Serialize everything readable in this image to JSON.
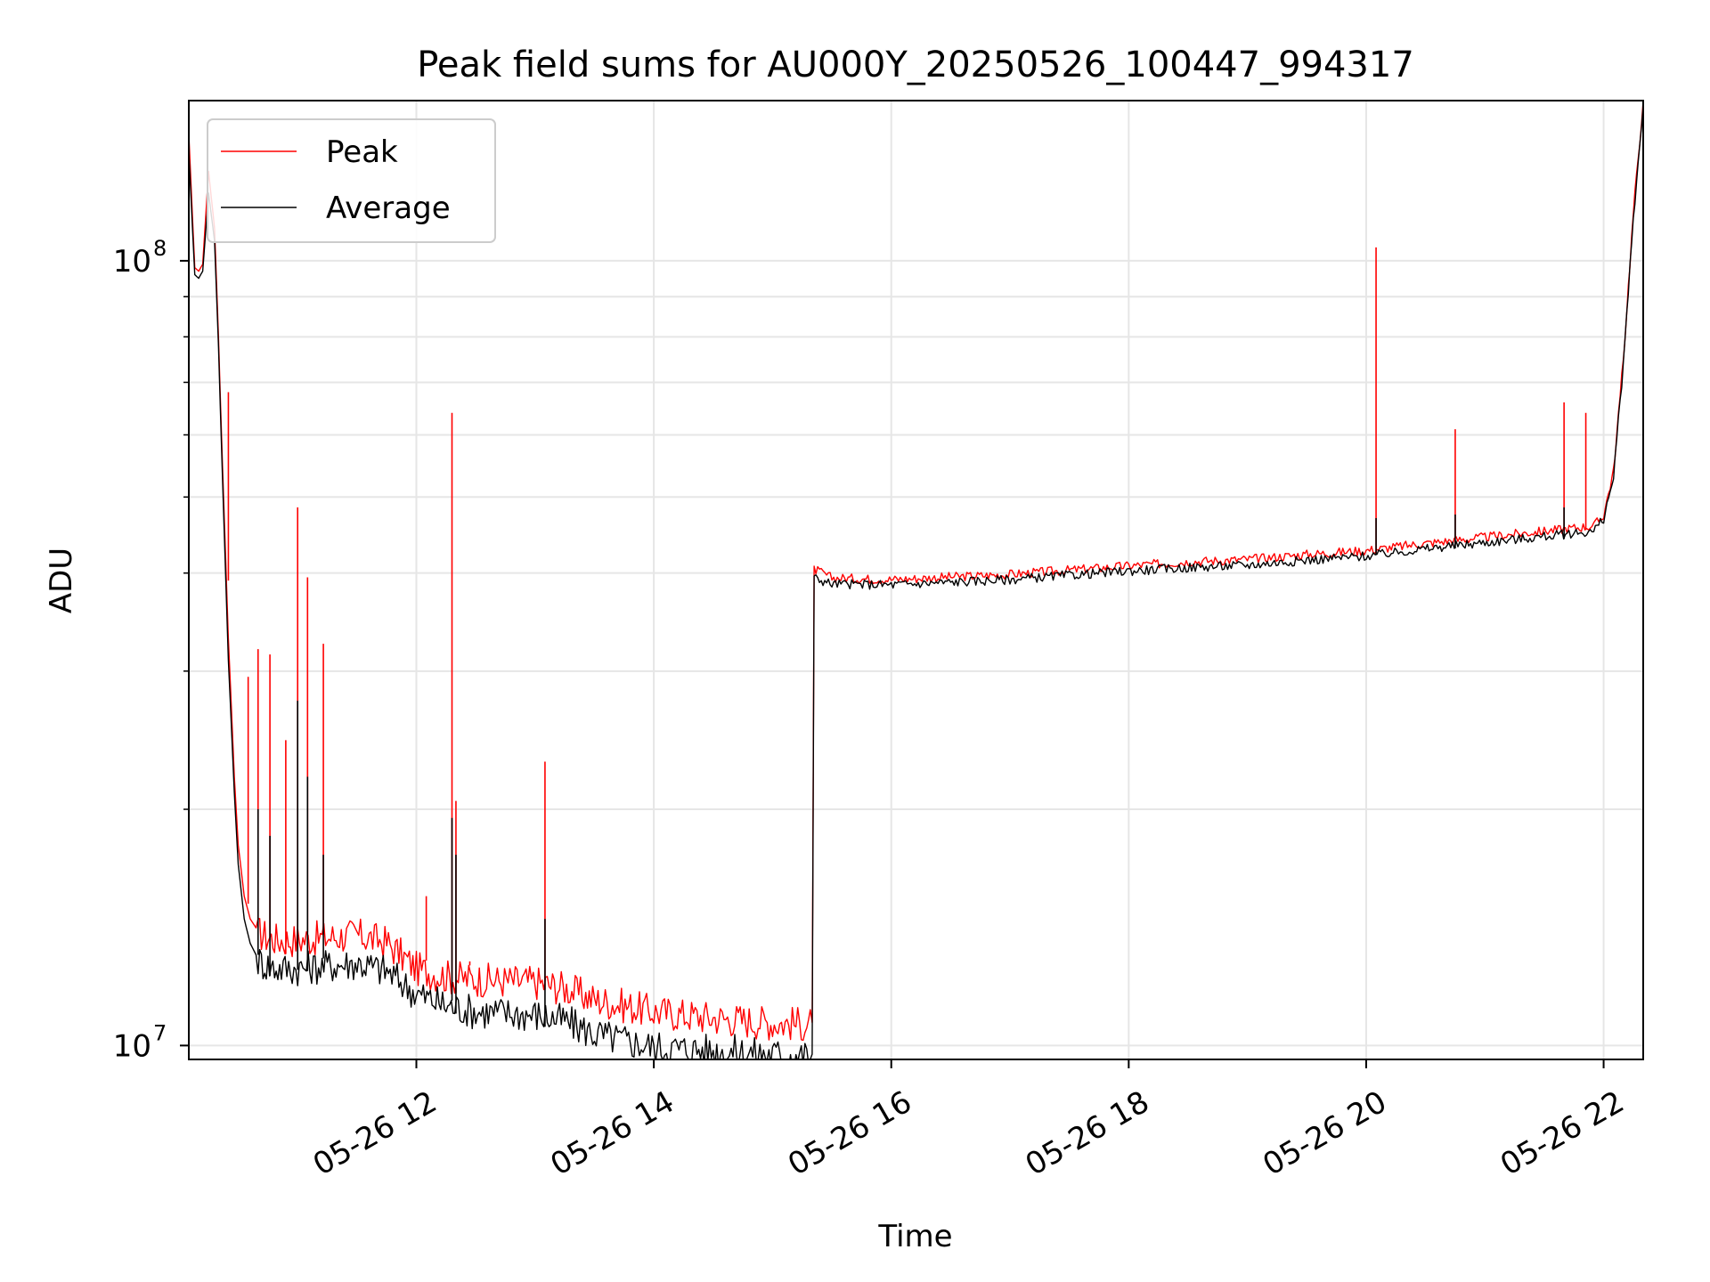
{
  "chart_data": {
    "type": "line",
    "title": "Peak field sums for AU000Y_20250526_100447_994317",
    "xlabel": "Time",
    "ylabel": "ADU",
    "yscale": "log",
    "xlim": [
      "2025-05-26 10:05",
      "2025-05-26 22:20"
    ],
    "ylim": [
      9600000,
      160000000
    ],
    "x_ticks": [
      "05-26 12",
      "05-26 14",
      "05-26 16",
      "05-26 18",
      "05-26 20",
      "05-26 22"
    ],
    "y_ticks": [
      {
        "label": "10",
        "exponent": "7",
        "value": 10000000
      },
      {
        "label": "10",
        "exponent": "8",
        "value": 100000000
      }
    ],
    "grid": true,
    "legend_position": "upper-left",
    "series": [
      {
        "name": "Peak",
        "color": "#ff0000",
        "x": [
          "2025-05-26 10:05",
          "2025-05-26 10:08",
          "2025-05-26 10:10",
          "2025-05-26 10:12",
          "2025-05-26 10:15",
          "2025-05-26 10:18",
          "2025-05-26 10:20",
          "2025-05-26 10:22",
          "2025-05-26 10:25",
          "2025-05-26 10:28",
          "2025-05-26 10:30",
          "2025-05-26 10:33",
          "2025-05-26 10:36",
          "2025-05-26 10:40",
          "2025-05-26 10:45",
          "2025-05-26 10:50",
          "2025-05-26 11:00",
          "2025-05-26 11:15",
          "2025-05-26 11:30",
          "2025-05-26 11:45",
          "2025-05-26 12:00",
          "2025-05-26 12:15",
          "2025-05-26 12:30",
          "2025-05-26 13:00",
          "2025-05-26 13:15",
          "2025-05-26 13:30",
          "2025-05-26 14:00",
          "2025-05-26 14:30",
          "2025-05-26 15:00",
          "2025-05-26 15:20",
          "2025-05-26 15:21",
          "2025-05-26 15:30",
          "2025-05-26 16:00",
          "2025-05-26 16:30",
          "2025-05-26 17:00",
          "2025-05-26 17:30",
          "2025-05-26 18:00",
          "2025-05-26 18:30",
          "2025-05-26 19:00",
          "2025-05-26 19:30",
          "2025-05-26 20:00",
          "2025-05-26 20:30",
          "2025-05-26 21:00",
          "2025-05-26 21:30",
          "2025-05-26 21:55",
          "2025-05-26 22:00",
          "2025-05-26 22:05",
          "2025-05-26 22:10",
          "2025-05-26 22:15",
          "2025-05-26 22:20"
        ],
        "values": [
          145000000,
          98000000,
          97000000,
          99000000,
          130000000,
          110000000,
          80000000,
          55000000,
          33000000,
          22000000,
          18000000,
          15500000,
          14500000,
          14000000,
          13800000,
          13700000,
          13700000,
          13800000,
          13900000,
          13600000,
          12600000,
          12300000,
          12200000,
          12100000,
          11900000,
          11500000,
          11100000,
          10900000,
          10750000,
          10700000,
          40500000,
          39500000,
          39300000,
          39600000,
          39900000,
          40400000,
          40900000,
          41400000,
          41700000,
          42300000,
          42800000,
          43700000,
          44500000,
          45300000,
          46000000,
          47500000,
          54000000,
          75000000,
          115000000,
          160000000
        ],
        "spikes": [
          {
            "x": "2025-05-26 10:25",
            "value": 68000000
          },
          {
            "x": "2025-05-26 10:35",
            "value": 29500000
          },
          {
            "x": "2025-05-26 10:40",
            "value": 32000000
          },
          {
            "x": "2025-05-26 10:46",
            "value": 31500000
          },
          {
            "x": "2025-05-26 10:54",
            "value": 24500000
          },
          {
            "x": "2025-05-26 11:00",
            "value": 48500000
          },
          {
            "x": "2025-05-26 11:05",
            "value": 39500000
          },
          {
            "x": "2025-05-26 11:13",
            "value": 32500000
          },
          {
            "x": "2025-05-26 12:05",
            "value": 15500000
          },
          {
            "x": "2025-05-26 12:18",
            "value": 64000000
          },
          {
            "x": "2025-05-26 12:20",
            "value": 20500000
          },
          {
            "x": "2025-05-26 12:27",
            "value": 12800000
          },
          {
            "x": "2025-05-26 13:05",
            "value": 23000000
          },
          {
            "x": "2025-05-26 20:05",
            "value": 104000000
          },
          {
            "x": "2025-05-26 20:45",
            "value": 61000000
          },
          {
            "x": "2025-05-26 21:40",
            "value": 66000000
          },
          {
            "x": "2025-05-26 21:51",
            "value": 64000000
          }
        ]
      },
      {
        "name": "Average",
        "color": "#000000",
        "x": [
          "2025-05-26 10:05",
          "2025-05-26 10:08",
          "2025-05-26 10:10",
          "2025-05-26 10:12",
          "2025-05-26 10:15",
          "2025-05-26 10:18",
          "2025-05-26 10:20",
          "2025-05-26 10:22",
          "2025-05-26 10:25",
          "2025-05-26 10:28",
          "2025-05-26 10:30",
          "2025-05-26 10:33",
          "2025-05-26 10:36",
          "2025-05-26 10:40",
          "2025-05-26 10:45",
          "2025-05-26 10:50",
          "2025-05-26 11:00",
          "2025-05-26 11:15",
          "2025-05-26 11:30",
          "2025-05-26 11:45",
          "2025-05-26 12:00",
          "2025-05-26 12:15",
          "2025-05-26 12:30",
          "2025-05-26 13:00",
          "2025-05-26 13:15",
          "2025-05-26 13:30",
          "2025-05-26 14:00",
          "2025-05-26 14:30",
          "2025-05-26 15:00",
          "2025-05-26 15:20",
          "2025-05-26 15:21",
          "2025-05-26 15:30",
          "2025-05-26 16:00",
          "2025-05-26 16:30",
          "2025-05-26 17:00",
          "2025-05-26 17:30",
          "2025-05-26 18:00",
          "2025-05-26 18:30",
          "2025-05-26 19:00",
          "2025-05-26 19:30",
          "2025-05-26 20:00",
          "2025-05-26 20:30",
          "2025-05-26 21:00",
          "2025-05-26 21:30",
          "2025-05-26 21:55",
          "2025-05-26 22:00",
          "2025-05-26 22:05",
          "2025-05-26 22:10",
          "2025-05-26 22:15",
          "2025-05-26 22:20"
        ],
        "values": [
          138000000,
          96000000,
          95000000,
          97000000,
          122000000,
          106000000,
          78000000,
          53000000,
          31000000,
          21000000,
          17000000,
          14500000,
          13500000,
          12900000,
          12700000,
          12600000,
          12600000,
          12700000,
          12800000,
          12500000,
          11700000,
          11300000,
          11100000,
          11000000,
          10800000,
          10400000,
          10000000,
          9900000,
          9800000,
          9750000,
          39500000,
          38800000,
          38700000,
          39000000,
          39300000,
          39800000,
          40300000,
          40700000,
          41000000,
          41600000,
          42100000,
          43000000,
          43800000,
          44600000,
          45300000,
          47000000,
          53000000,
          74000000,
          113000000,
          158000000
        ],
        "spikes": [
          {
            "x": "2025-05-26 10:40",
            "value": 20000000
          },
          {
            "x": "2025-05-26 10:46",
            "value": 18500000
          },
          {
            "x": "2025-05-26 11:00",
            "value": 27500000
          },
          {
            "x": "2025-05-26 11:05",
            "value": 22000000
          },
          {
            "x": "2025-05-26 11:13",
            "value": 17500000
          },
          {
            "x": "2025-05-26 12:18",
            "value": 19500000
          },
          {
            "x": "2025-05-26 12:20",
            "value": 17500000
          },
          {
            "x": "2025-05-26 13:05",
            "value": 14500000
          },
          {
            "x": "2025-05-26 20:05",
            "value": 47000000
          },
          {
            "x": "2025-05-26 20:45",
            "value": 47500000
          },
          {
            "x": "2025-05-26 21:40",
            "value": 48500000
          }
        ]
      }
    ]
  }
}
